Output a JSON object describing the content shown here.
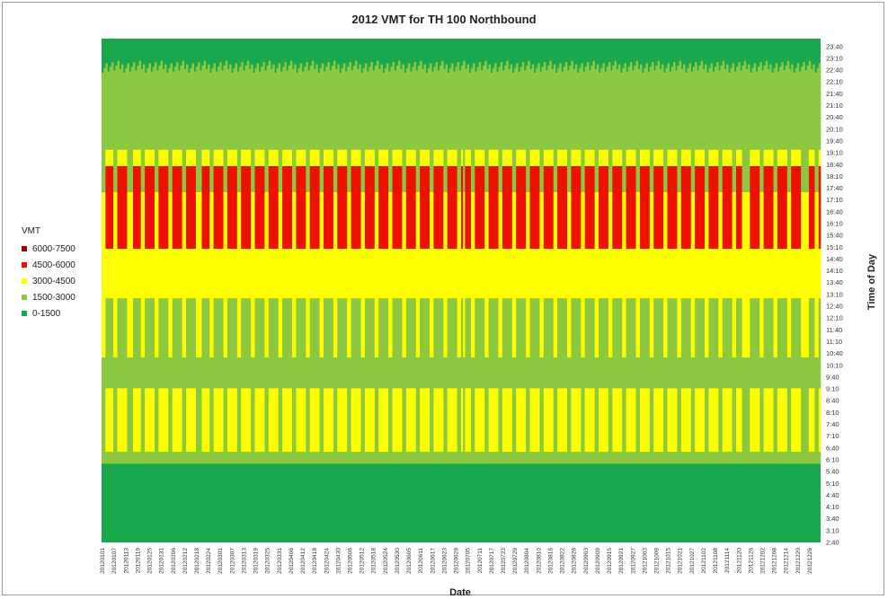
{
  "chart_data": {
    "type": "heatmap",
    "title": "2012 VMT for TH 100 Northbound",
    "xlabel": "Date",
    "ylabel": "Time of Day",
    "legend": {
      "title": "VMT",
      "placement": "left",
      "bins": [
        {
          "label": "6000-7500",
          "color": "#a50000",
          "min": 6000,
          "max": 7500
        },
        {
          "label": "4500-6000",
          "color": "#ee1100",
          "min": 4500,
          "max": 6000
        },
        {
          "label": "3000-4500",
          "color": "#ffff00",
          "min": 3000,
          "max": 4500
        },
        {
          "label": "1500-3000",
          "color": "#8cc840",
          "min": 1500,
          "max": 3000
        },
        {
          "label": "0-1500",
          "color": "#1aa64a",
          "min": 0,
          "max": 1500
        }
      ]
    },
    "y_ticks": [
      "2:40",
      "3:10",
      "3:40",
      "4:10",
      "4:40",
      "5:10",
      "5:40",
      "6:10",
      "6:40",
      "7:10",
      "7:40",
      "8:10",
      "8:40",
      "9:10",
      "9:40",
      "10:10",
      "10:40",
      "11:10",
      "11:40",
      "12:10",
      "12:40",
      "13:10",
      "13:40",
      "14:10",
      "14:40",
      "15:10",
      "15:40",
      "16:10",
      "16:40",
      "17:10",
      "17:40",
      "18:10",
      "18:40",
      "19:10",
      "19:40",
      "20:10",
      "20:40",
      "21:10",
      "21:40",
      "22:10",
      "22:40",
      "23:10",
      "23:40"
    ],
    "x_ticks": [
      "20120101",
      "20120107",
      "20120113",
      "20120119",
      "20120125",
      "20120131",
      "20120206",
      "20120212",
      "20120218",
      "20120224",
      "20120301",
      "20120307",
      "20120313",
      "20120319",
      "20120325",
      "20120331",
      "20120406",
      "20120412",
      "20120418",
      "20120424",
      "20120430",
      "20120506",
      "20120512",
      "20120518",
      "20120524",
      "20120530",
      "20120605",
      "20120611",
      "20120617",
      "20120623",
      "20120629",
      "20120705",
      "20120711",
      "20120717",
      "20120723",
      "20120729",
      "20120804",
      "20120810",
      "20120816",
      "20120822",
      "20120828",
      "20120903",
      "20120909",
      "20120915",
      "20120921",
      "20120927",
      "20121003",
      "20121009",
      "20121015",
      "20121021",
      "20121027",
      "20121102",
      "20121108",
      "20121114",
      "20121120",
      "20121126",
      "20121202",
      "20121208",
      "20121214",
      "20121220",
      "20121226"
    ],
    "x_range": [
      "20120101",
      "20121231"
    ],
    "y_range": [
      "2:40",
      "23:59"
    ],
    "typical_profile": {
      "description_units": "hour of day",
      "weekday": [
        {
          "from": 2.67,
          "to": 6.0,
          "vmt_bin": "0-1500"
        },
        {
          "from": 6.0,
          "to": 6.5,
          "vmt_bin": "1500-3000"
        },
        {
          "from": 6.5,
          "to": 9.2,
          "vmt_bin": "3000-4500"
        },
        {
          "from": 9.2,
          "to": 13.0,
          "vmt_bin": "1500-3000"
        },
        {
          "from": 13.0,
          "to": 15.1,
          "vmt_bin": "3000-4500"
        },
        {
          "from": 15.1,
          "to": 18.6,
          "vmt_bin": "4500-6000"
        },
        {
          "from": 18.6,
          "to": 19.3,
          "vmt_bin": "3000-4500"
        },
        {
          "from": 19.3,
          "to": 22.8,
          "vmt_bin": "1500-3000"
        },
        {
          "from": 22.8,
          "to": 24.0,
          "vmt_bin": "0-1500"
        }
      ],
      "weekend": [
        {
          "from": 2.67,
          "to": 6.0,
          "vmt_bin": "0-1500"
        },
        {
          "from": 6.0,
          "to": 10.5,
          "vmt_bin": "1500-3000"
        },
        {
          "from": 10.5,
          "to": 17.5,
          "vmt_bin": "3000-4500"
        },
        {
          "from": 17.5,
          "to": 22.8,
          "vmt_bin": "1500-3000"
        },
        {
          "from": 22.8,
          "to": 24.0,
          "vmt_bin": "0-1500"
        }
      ]
    }
  }
}
